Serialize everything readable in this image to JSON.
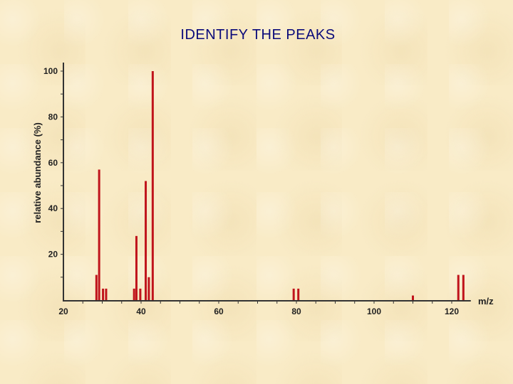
{
  "slide": {
    "title": "IDENTIFY THE PEAKS"
  },
  "colors": {
    "bar": "#c0141c",
    "axis": "#333333",
    "background": "#f9ebc6"
  },
  "chart_data": {
    "type": "bar",
    "title": "",
    "xlabel": "m/z",
    "ylabel": "relative abundance (%)",
    "xlim": [
      20,
      124
    ],
    "ylim": [
      0,
      100
    ],
    "x_ticks": [
      20,
      40,
      60,
      80,
      100,
      120
    ],
    "y_ticks": [
      20,
      40,
      60,
      80,
      100
    ],
    "grid": false,
    "peaks": [
      {
        "mz": 28.5,
        "abundance": 11
      },
      {
        "mz": 29.2,
        "abundance": 57
      },
      {
        "mz": 30.2,
        "abundance": 5
      },
      {
        "mz": 31.0,
        "abundance": 5
      },
      {
        "mz": 38.2,
        "abundance": 5
      },
      {
        "mz": 38.8,
        "abundance": 28
      },
      {
        "mz": 39.8,
        "abundance": 5
      },
      {
        "mz": 41.2,
        "abundance": 52
      },
      {
        "mz": 42.0,
        "abundance": 10
      },
      {
        "mz": 43.0,
        "abundance": 100
      },
      {
        "mz": 79.3,
        "abundance": 5
      },
      {
        "mz": 80.5,
        "abundance": 5
      },
      {
        "mz": 110.0,
        "abundance": 2
      },
      {
        "mz": 121.7,
        "abundance": 11
      },
      {
        "mz": 123.0,
        "abundance": 11
      }
    ]
  }
}
